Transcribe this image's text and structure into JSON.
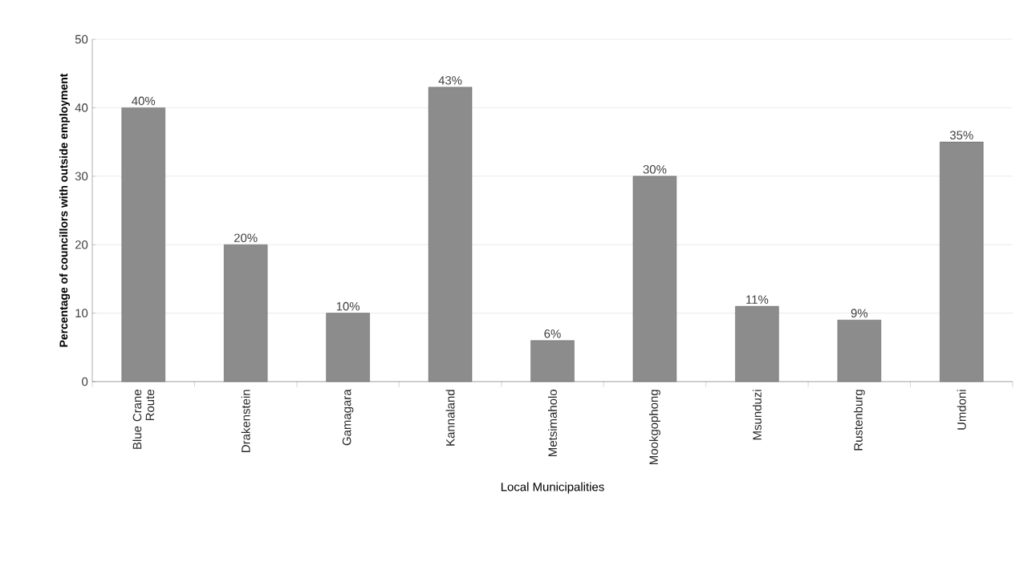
{
  "chart_data": {
    "type": "bar",
    "xlabel": "Local Municipalities",
    "ylabel": "Percentage of councillors with outside employment",
    "categories": [
      "Blue Crane Route",
      "Drakenstein",
      "Gamagara",
      "Kannaland",
      "Metsimaholo",
      "Mookgophong",
      "Msunduzi",
      "Rustenburg",
      "Umdoni"
    ],
    "values": [
      40,
      20,
      10,
      43,
      6,
      30,
      11,
      9,
      35
    ],
    "value_labels": [
      "40%",
      "20%",
      "10%",
      "43%",
      "6%",
      "30%",
      "11%",
      "9%",
      "35%"
    ],
    "color": "#8c8c8c",
    "ylim": [
      0,
      50
    ],
    "yticks": [
      0,
      10,
      20,
      30,
      40,
      50
    ],
    "grid": "y"
  }
}
